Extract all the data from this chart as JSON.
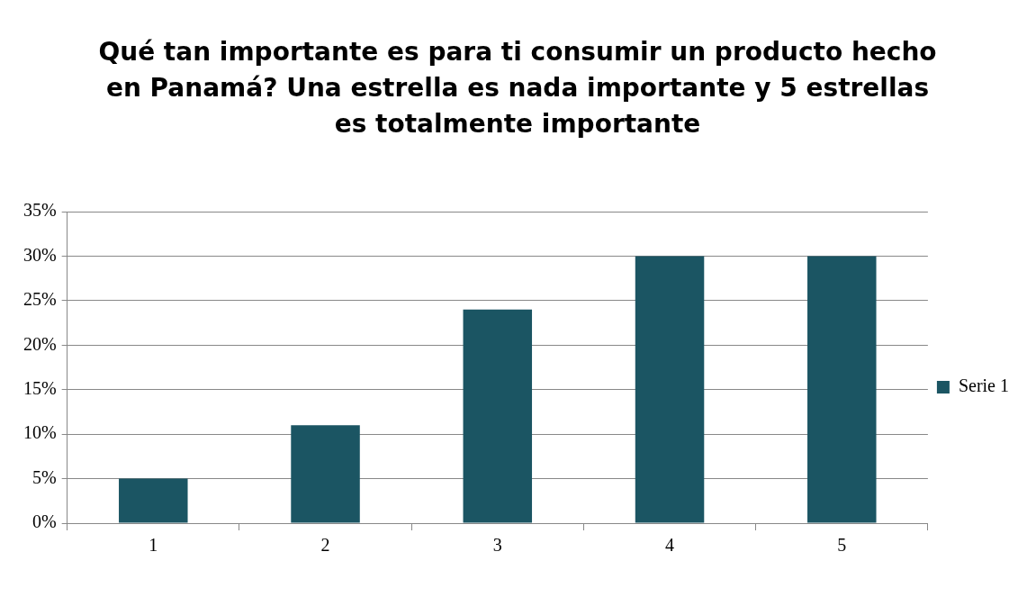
{
  "chart_data": {
    "type": "bar",
    "title": "Qué tan importante es para ti consumir un producto hecho en Panamá? Una estrella es nada importante y 5 estrellas es totalmente importante",
    "categories": [
      "1",
      "2",
      "3",
      "4",
      "5"
    ],
    "series": [
      {
        "name": "Serie 1",
        "color": "#1b5563",
        "values": [
          5,
          11,
          24,
          30,
          30
        ]
      }
    ],
    "ylim": [
      0,
      35
    ],
    "yticks": [
      {
        "value": 0,
        "label": "0%"
      },
      {
        "value": 5,
        "label": "5%"
      },
      {
        "value": 10,
        "label": "10%"
      },
      {
        "value": 15,
        "label": "15%"
      },
      {
        "value": 20,
        "label": "20%"
      },
      {
        "value": 25,
        "label": "25%"
      },
      {
        "value": 30,
        "label": "30%"
      },
      {
        "value": 35,
        "label": "35%"
      }
    ],
    "grid": "y",
    "legend": "right"
  }
}
